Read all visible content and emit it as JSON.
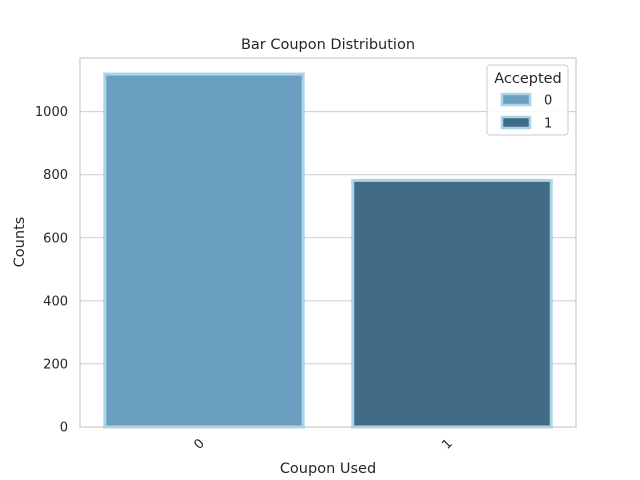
{
  "chart_data": {
    "type": "bar",
    "title": "Bar Coupon Distribution",
    "xlabel": "Coupon Used",
    "ylabel": "Counts",
    "categories": [
      "0",
      "1"
    ],
    "series": [
      {
        "name": "0",
        "values": [
          1119,
          null
        ],
        "color": "#6a9fc2"
      },
      {
        "name": "1",
        "values": [
          null,
          782
        ],
        "color": "#416a87"
      }
    ],
    "ylim": [
      0,
      1170
    ],
    "yticks": [
      0,
      200,
      400,
      600,
      800,
      1000
    ],
    "grid": true,
    "bar_edge_color": "#a8d4e6",
    "legend": {
      "title": "Accepted",
      "placement": "top-right",
      "entries": [
        "0",
        "1"
      ]
    }
  }
}
